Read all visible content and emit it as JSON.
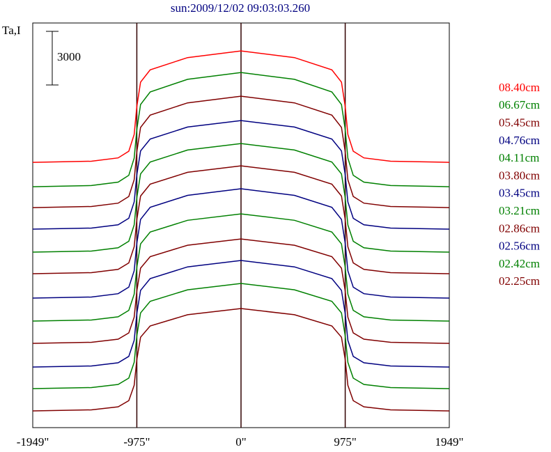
{
  "chart_data": {
    "type": "line",
    "title": "sun:2009/12/02 09:03:03.260",
    "y_label": "Ta,I",
    "scale_bar": 3000,
    "xlim": [
      -1949,
      1949
    ],
    "ylim": [
      0,
      22640
    ],
    "xticks": [
      {
        "value": -1949,
        "label": "-1949\""
      },
      {
        "value": -975,
        "label": "-975\""
      },
      {
        "value": 0,
        "label": "0\""
      },
      {
        "value": 975,
        "label": "975\""
      },
      {
        "value": 1949,
        "label": "1949\""
      }
    ],
    "x": [
      -1949,
      -1400,
      -1150,
      -1050,
      -1000,
      -975,
      -940,
      -850,
      -500,
      0,
      500,
      850,
      940,
      975,
      1000,
      1050,
      1150,
      1400,
      1949
    ],
    "series": [
      {
        "name": "08.40cm",
        "color": "#ff0000",
        "values": [
          14844,
          14906,
          15093,
          15467,
          16403,
          17961,
          19332,
          20018,
          20704,
          21078,
          20704,
          20018,
          19332,
          17961,
          16403,
          15467,
          15093,
          14906,
          14844
        ]
      },
      {
        "name": "06.67cm",
        "color": "#008000",
        "values": [
          13480,
          13544,
          13736,
          14119,
          15077,
          16675,
          18080,
          18783,
          19486,
          19869,
          19486,
          18783,
          18080,
          16675,
          15077,
          14119,
          13736,
          13544,
          13480
        ]
      },
      {
        "name": "05.45cm",
        "color": "#800000",
        "values": [
          12311,
          12373,
          12560,
          12934,
          13870,
          15428,
          16799,
          17485,
          18171,
          18545,
          18171,
          17485,
          16799,
          15428,
          13870,
          12934,
          12560,
          12373,
          12311
        ]
      },
      {
        "name": "04.76cm",
        "color": "#000080",
        "values": [
          11104,
          11165,
          11347,
          11712,
          12624,
          14143,
          15480,
          16149,
          16817,
          17182,
          16817,
          16149,
          15480,
          14143,
          12624,
          11712,
          11347,
          11165,
          11104
        ]
      },
      {
        "name": "04.11cm",
        "color": "#008000",
        "values": [
          9818,
          9879,
          10061,
          10426,
          11338,
          12857,
          14194,
          14863,
          15531,
          15896,
          15531,
          14863,
          14194,
          12857,
          11338,
          10426,
          10061,
          9879,
          9818
        ]
      },
      {
        "name": "03.80cm",
        "color": "#800000",
        "values": [
          8610,
          8670,
          8852,
          9214,
          10120,
          11630,
          12958,
          13622,
          14287,
          14649,
          14287,
          13622,
          12958,
          11630,
          10120,
          9214,
          8852,
          8670,
          8610
        ]
      },
      {
        "name": "03.45cm",
        "color": "#000080",
        "values": [
          7247,
          7308,
          7492,
          7859,
          8776,
          10306,
          11651,
          12324,
          12997,
          13364,
          12997,
          12324,
          11651,
          10306,
          8776,
          7859,
          7492,
          7308,
          7247
        ]
      },
      {
        "name": "03.21cm",
        "color": "#008000",
        "values": [
          5961,
          6021,
          6201,
          6561,
          7461,
          8961,
          10281,
          10941,
          11601,
          11961,
          11601,
          10941,
          10281,
          8961,
          7461,
          6561,
          6201,
          6021,
          5961
        ]
      },
      {
        "name": "02.86cm",
        "color": "#800000",
        "values": [
          4714,
          4772,
          4948,
          5298,
          6175,
          7636,
          8922,
          9565,
          10207,
          10558,
          10207,
          9565,
          8922,
          7636,
          6175,
          5298,
          4948,
          4772,
          4714
        ]
      },
      {
        "name": "02.56cm",
        "color": "#000080",
        "values": [
          3390,
          3450,
          3628,
          3986,
          4880,
          6371,
          7682,
          8338,
          8993,
          9351,
          8993,
          8338,
          7682,
          6371,
          4880,
          3986,
          3628,
          3450,
          3390
        ]
      },
      {
        "name": "02.42cm",
        "color": "#008000",
        "values": [
          2182,
          2241,
          2417,
          2770,
          3653,
          5124,
          6418,
          7065,
          7712,
          8065,
          7712,
          7065,
          6418,
          5124,
          3653,
          2770,
          2417,
          2241,
          2182
        ]
      },
      {
        "name": "02.25cm",
        "color": "#800000",
        "values": [
          935,
          992,
          1164,
          1508,
          2367,
          3799,
          5058,
          5688,
          6318,
          6662,
          6318,
          5688,
          5058,
          3799,
          2367,
          1508,
          1164,
          992,
          935
        ]
      }
    ]
  }
}
